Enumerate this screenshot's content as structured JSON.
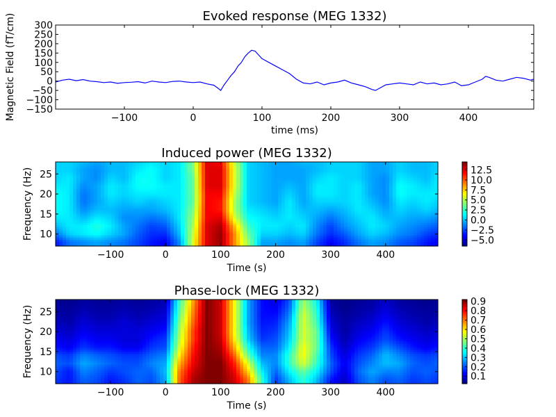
{
  "chart_data": [
    {
      "type": "line",
      "title": "Evoked response (MEG 1332)",
      "xlabel": "time (ms)",
      "ylabel": "Magnetic Field (fT/cm)",
      "xlim": [
        -200,
        495
      ],
      "ylim": [
        -150,
        300
      ],
      "xticks": [
        -100,
        0,
        100,
        200,
        300,
        400
      ],
      "yticks": [
        -150,
        -100,
        -50,
        0,
        50,
        100,
        150,
        200,
        250,
        300
      ],
      "grid": false,
      "color": "#0000ff",
      "series": [
        {
          "x": [
            -200,
            -190,
            -180,
            -170,
            -160,
            -150,
            -140,
            -130,
            -120,
            -110,
            -100,
            -90,
            -80,
            -70,
            -60,
            -50,
            -40,
            -30,
            -20,
            -10,
            0,
            10,
            20,
            30,
            35,
            40,
            45,
            50,
            55,
            60,
            65,
            70,
            75,
            80,
            85,
            90,
            95,
            100,
            110,
            120,
            130,
            140,
            150,
            160,
            170,
            180,
            190,
            200,
            210,
            220,
            230,
            240,
            250,
            260,
            265,
            270,
            280,
            290,
            300,
            310,
            320,
            330,
            340,
            350,
            360,
            370,
            380,
            390,
            400,
            410,
            420,
            425,
            430,
            440,
            450,
            460,
            470,
            480,
            490,
            495
          ],
          "y": [
            -5,
            5,
            10,
            2,
            8,
            0,
            -3,
            -8,
            -5,
            -12,
            -8,
            -6,
            -3,
            -10,
            0,
            -5,
            -8,
            -2,
            0,
            -5,
            -8,
            -5,
            -15,
            -22,
            -35,
            -50,
            -20,
            5,
            30,
            50,
            80,
            100,
            130,
            150,
            165,
            160,
            140,
            120,
            100,
            80,
            60,
            40,
            10,
            -10,
            -15,
            -5,
            -20,
            -10,
            -5,
            5,
            -10,
            -20,
            -30,
            -45,
            -50,
            -40,
            -20,
            -15,
            -10,
            -15,
            -20,
            -5,
            -15,
            -10,
            -20,
            -15,
            -5,
            -25,
            -20,
            -5,
            10,
            25,
            20,
            5,
            0,
            10,
            20,
            15,
            5,
            10
          ]
        }
      ]
    },
    {
      "type": "heatmap",
      "title": "Induced power (MEG 1332)",
      "xlabel": "Time (s)",
      "ylabel": "Frequency (Hz)",
      "xlim": [
        -200,
        495
      ],
      "ylim": [
        7,
        28
      ],
      "xticks": [
        -100,
        0,
        100,
        200,
        300,
        400
      ],
      "yticks": [
        10,
        15,
        20,
        25
      ],
      "colormap": "jet",
      "colorbar": {
        "vmin": -6.5,
        "vmax": 14.5,
        "ticks": [
          "12.5",
          "10.0",
          "7.5",
          "5.0",
          "2.5",
          "0.0",
          "−2.5",
          "−5.0"
        ],
        "tick_values": [
          12.5,
          10.0,
          7.5,
          5.0,
          2.5,
          0.0,
          -2.5,
          -5.0
        ]
      },
      "t": [
        -200,
        -175,
        -150,
        -125,
        -100,
        -75,
        -50,
        -25,
        0,
        25,
        50,
        75,
        100,
        125,
        150,
        175,
        200,
        225,
        250,
        275,
        300,
        325,
        350,
        375,
        400,
        425,
        450,
        475,
        495
      ],
      "f": [
        8,
        10,
        12,
        14,
        16,
        18,
        20,
        22,
        24,
        26,
        28
      ],
      "z": [
        [
          -3.5,
          -1.5,
          -1.0,
          -0.5,
          -1.0,
          -1.5,
          -2.5,
          -3.5,
          -4.0,
          -1.0,
          6.0,
          12.5,
          14.0,
          9.0,
          4.5,
          -0.5,
          -0.5,
          -1.0,
          -0.5,
          -2.5,
          -4.0,
          -3.0,
          -1.5,
          -0.5,
          -1.0,
          -2.0,
          -2.5,
          -3.5,
          -4.0
        ],
        [
          -1.5,
          0.5,
          1.0,
          1.5,
          0.5,
          -0.5,
          -2.0,
          -3.0,
          -3.0,
          0.0,
          5.5,
          12.5,
          14.0,
          9.0,
          3.5,
          0.5,
          0.5,
          0.0,
          0.5,
          -1.5,
          -3.0,
          -2.0,
          -0.5,
          0.5,
          0.0,
          -1.0,
          -1.5,
          -2.5,
          -3.0
        ],
        [
          0.0,
          1.0,
          1.0,
          2.0,
          1.0,
          -0.5,
          -1.5,
          -2.5,
          -2.0,
          0.5,
          5.0,
          12.5,
          13.5,
          8.0,
          2.5,
          1.0,
          1.0,
          0.5,
          1.0,
          -1.0,
          -2.5,
          -1.0,
          0.0,
          1.0,
          0.5,
          -0.5,
          -1.0,
          -1.5,
          -2.0
        ],
        [
          1.0,
          1.0,
          0.0,
          1.0,
          0.5,
          -1.0,
          -1.0,
          -1.5,
          -1.0,
          1.0,
          4.5,
          12.0,
          12.5,
          6.0,
          1.5,
          1.0,
          0.5,
          1.0,
          0.5,
          -0.5,
          -1.5,
          -0.5,
          0.5,
          1.0,
          0.0,
          0.0,
          -0.5,
          -0.5,
          -1.0
        ],
        [
          1.5,
          1.0,
          -1.0,
          0.0,
          0.0,
          -0.5,
          -0.5,
          -0.5,
          0.0,
          1.0,
          4.0,
          12.0,
          11.5,
          5.0,
          1.0,
          0.5,
          0.0,
          1.0,
          0.0,
          0.0,
          -0.5,
          0.0,
          1.0,
          0.5,
          -0.5,
          0.5,
          0.0,
          0.5,
          0.0
        ],
        [
          1.5,
          1.0,
          -1.5,
          -0.5,
          0.5,
          0.0,
          0.5,
          0.0,
          0.5,
          1.0,
          3.5,
          12.0,
          11.5,
          5.0,
          0.5,
          0.0,
          -0.5,
          1.0,
          -0.5,
          0.5,
          0.5,
          0.5,
          1.0,
          0.0,
          -1.0,
          1.0,
          0.5,
          1.0,
          0.5
        ],
        [
          1.5,
          1.0,
          -1.5,
          -0.5,
          1.0,
          0.5,
          1.0,
          1.0,
          1.0,
          1.0,
          3.5,
          12.0,
          12.0,
          5.5,
          0.5,
          0.0,
          -0.5,
          0.5,
          -0.5,
          1.0,
          1.0,
          0.5,
          1.0,
          -0.5,
          -1.0,
          1.5,
          1.0,
          1.0,
          1.0
        ],
        [
          1.0,
          1.0,
          -1.0,
          -0.5,
          1.0,
          0.5,
          1.5,
          1.5,
          1.0,
          1.0,
          3.5,
          12.5,
          12.5,
          6.0,
          0.5,
          0.0,
          -0.5,
          0.0,
          -0.5,
          1.0,
          1.0,
          0.5,
          1.0,
          -0.5,
          -1.0,
          1.5,
          1.0,
          0.5,
          1.0
        ],
        [
          0.5,
          1.0,
          -0.5,
          -1.0,
          0.5,
          0.0,
          1.5,
          1.5,
          0.5,
          1.0,
          3.5,
          12.5,
          12.5,
          6.0,
          0.5,
          0.0,
          -0.5,
          -0.5,
          -0.5,
          0.5,
          1.0,
          0.5,
          0.5,
          -0.5,
          -1.0,
          1.0,
          0.5,
          0.0,
          1.0
        ],
        [
          0.5,
          0.5,
          -0.5,
          -1.0,
          0.0,
          0.0,
          1.0,
          1.5,
          0.5,
          1.0,
          4.0,
          12.5,
          12.5,
          6.0,
          0.5,
          0.0,
          -0.5,
          -0.5,
          -0.5,
          0.0,
          0.5,
          0.5,
          0.5,
          -0.5,
          -0.5,
          0.5,
          0.0,
          0.0,
          0.5
        ],
        [
          0.5,
          0.5,
          0.0,
          -0.5,
          0.0,
          0.0,
          0.5,
          1.0,
          0.5,
          1.0,
          4.0,
          12.5,
          12.0,
          5.5,
          0.5,
          0.0,
          -0.5,
          -0.5,
          0.0,
          0.0,
          0.5,
          0.5,
          0.5,
          -0.5,
          -0.5,
          0.5,
          0.0,
          0.0,
          0.5
        ]
      ]
    },
    {
      "type": "heatmap",
      "title": "Phase-lock (MEG 1332)",
      "xlabel": "Time (s)",
      "ylabel": "Frequency (Hz)",
      "xlim": [
        -200,
        495
      ],
      "ylim": [
        7,
        28
      ],
      "xticks": [
        -100,
        0,
        100,
        200,
        300,
        400
      ],
      "yticks": [
        10,
        15,
        20,
        25
      ],
      "colormap": "jet",
      "colorbar": {
        "vmin": 0.02,
        "vmax": 0.92,
        "ticks": [
          "0.9",
          "0.8",
          "0.7",
          "0.6",
          "0.5",
          "0.4",
          "0.3",
          "0.2",
          "0.1"
        ],
        "tick_values": [
          0.9,
          0.8,
          0.7,
          0.6,
          0.5,
          0.4,
          0.3,
          0.2,
          0.1
        ]
      },
      "t": [
        -200,
        -175,
        -150,
        -125,
        -100,
        -75,
        -50,
        -25,
        0,
        25,
        50,
        75,
        100,
        125,
        150,
        175,
        200,
        225,
        250,
        275,
        300,
        325,
        350,
        375,
        400,
        425,
        450,
        475,
        495
      ],
      "f": [
        8,
        10,
        12,
        14,
        16,
        18,
        20,
        22,
        24,
        26,
        28
      ],
      "z": [
        [
          0.18,
          0.15,
          0.22,
          0.2,
          0.15,
          0.18,
          0.22,
          0.2,
          0.28,
          0.72,
          0.88,
          0.92,
          0.92,
          0.85,
          0.7,
          0.4,
          0.18,
          0.3,
          0.4,
          0.3,
          0.15,
          0.08,
          0.2,
          0.25,
          0.2,
          0.22,
          0.18,
          0.2,
          0.18
        ],
        [
          0.2,
          0.15,
          0.25,
          0.22,
          0.18,
          0.2,
          0.22,
          0.22,
          0.3,
          0.7,
          0.85,
          0.92,
          0.92,
          0.82,
          0.62,
          0.35,
          0.22,
          0.35,
          0.45,
          0.35,
          0.2,
          0.1,
          0.22,
          0.28,
          0.25,
          0.25,
          0.2,
          0.22,
          0.2
        ],
        [
          0.22,
          0.2,
          0.28,
          0.25,
          0.22,
          0.2,
          0.2,
          0.25,
          0.28,
          0.65,
          0.82,
          0.92,
          0.92,
          0.78,
          0.55,
          0.3,
          0.25,
          0.4,
          0.55,
          0.4,
          0.22,
          0.12,
          0.2,
          0.25,
          0.3,
          0.28,
          0.22,
          0.2,
          0.22
        ],
        [
          0.2,
          0.18,
          0.25,
          0.22,
          0.2,
          0.18,
          0.18,
          0.22,
          0.25,
          0.6,
          0.8,
          0.92,
          0.9,
          0.72,
          0.45,
          0.25,
          0.25,
          0.4,
          0.58,
          0.42,
          0.2,
          0.1,
          0.18,
          0.22,
          0.3,
          0.25,
          0.2,
          0.18,
          0.2
        ],
        [
          0.15,
          0.12,
          0.18,
          0.15,
          0.15,
          0.12,
          0.12,
          0.18,
          0.2,
          0.55,
          0.78,
          0.92,
          0.88,
          0.65,
          0.38,
          0.22,
          0.22,
          0.35,
          0.58,
          0.45,
          0.18,
          0.08,
          0.15,
          0.18,
          0.25,
          0.2,
          0.15,
          0.12,
          0.15
        ],
        [
          0.12,
          0.1,
          0.15,
          0.12,
          0.12,
          0.1,
          0.1,
          0.15,
          0.18,
          0.52,
          0.75,
          0.92,
          0.86,
          0.6,
          0.32,
          0.18,
          0.2,
          0.32,
          0.55,
          0.45,
          0.15,
          0.06,
          0.12,
          0.15,
          0.2,
          0.15,
          0.12,
          0.1,
          0.12
        ],
        [
          0.1,
          0.08,
          0.12,
          0.1,
          0.1,
          0.1,
          0.1,
          0.12,
          0.15,
          0.5,
          0.75,
          0.92,
          0.85,
          0.58,
          0.3,
          0.16,
          0.18,
          0.3,
          0.55,
          0.45,
          0.12,
          0.05,
          0.1,
          0.12,
          0.18,
          0.12,
          0.1,
          0.08,
          0.1
        ],
        [
          0.08,
          0.06,
          0.1,
          0.08,
          0.08,
          0.1,
          0.08,
          0.1,
          0.12,
          0.48,
          0.72,
          0.92,
          0.85,
          0.58,
          0.28,
          0.15,
          0.16,
          0.28,
          0.55,
          0.42,
          0.1,
          0.05,
          0.08,
          0.1,
          0.15,
          0.1,
          0.08,
          0.06,
          0.08
        ],
        [
          0.06,
          0.05,
          0.08,
          0.06,
          0.06,
          0.08,
          0.06,
          0.08,
          0.1,
          0.45,
          0.7,
          0.92,
          0.85,
          0.58,
          0.28,
          0.14,
          0.14,
          0.25,
          0.55,
          0.4,
          0.08,
          0.04,
          0.06,
          0.08,
          0.12,
          0.08,
          0.06,
          0.05,
          0.06
        ],
        [
          0.05,
          0.04,
          0.06,
          0.05,
          0.05,
          0.06,
          0.05,
          0.06,
          0.08,
          0.42,
          0.68,
          0.92,
          0.85,
          0.58,
          0.28,
          0.14,
          0.12,
          0.22,
          0.52,
          0.38,
          0.06,
          0.03,
          0.05,
          0.06,
          0.1,
          0.06,
          0.05,
          0.04,
          0.05
        ],
        [
          0.04,
          0.03,
          0.05,
          0.04,
          0.04,
          0.05,
          0.04,
          0.05,
          0.06,
          0.4,
          0.66,
          0.92,
          0.85,
          0.58,
          0.28,
          0.14,
          0.1,
          0.2,
          0.5,
          0.36,
          0.05,
          0.03,
          0.04,
          0.05,
          0.08,
          0.05,
          0.04,
          0.03,
          0.04
        ]
      ]
    }
  ]
}
